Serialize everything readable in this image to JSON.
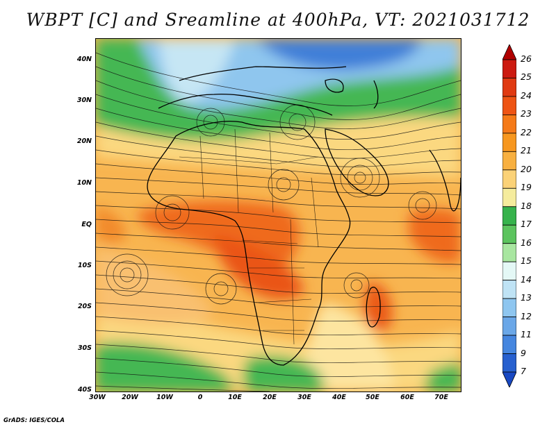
{
  "title": "WBPT [C] and Sreamline at 400hPa, VT: 2021031712",
  "lat_labels": [
    "40N",
    "30N",
    "20N",
    "10N",
    "EQ",
    "10S",
    "20S",
    "30S",
    "40S"
  ],
  "lon_labels": [
    "30W",
    "20W",
    "10W",
    "0",
    "10E",
    "20E",
    "30E",
    "40E",
    "50E",
    "60E",
    "70E"
  ],
  "colorbar": {
    "labels": [
      "26",
      "25",
      "24",
      "23",
      "22",
      "21",
      "20",
      "19",
      "18",
      "17",
      "16",
      "15",
      "14",
      "13",
      "12",
      "11",
      "9",
      "7"
    ],
    "colors": [
      "#b00000",
      "#cc1a10",
      "#e03a12",
      "#ee5414",
      "#f57a18",
      "#f7971f",
      "#f8b040",
      "#fbd277",
      "#f5ec9d",
      "#36b34c",
      "#5cc45e",
      "#a8e6a0",
      "#e4f8f6",
      "#bfe3f5",
      "#8ec6f0",
      "#6aa7e8",
      "#4586df",
      "#2760cf",
      "#1848c2"
    ]
  },
  "credit": "GrADS: IGES/COLA"
}
